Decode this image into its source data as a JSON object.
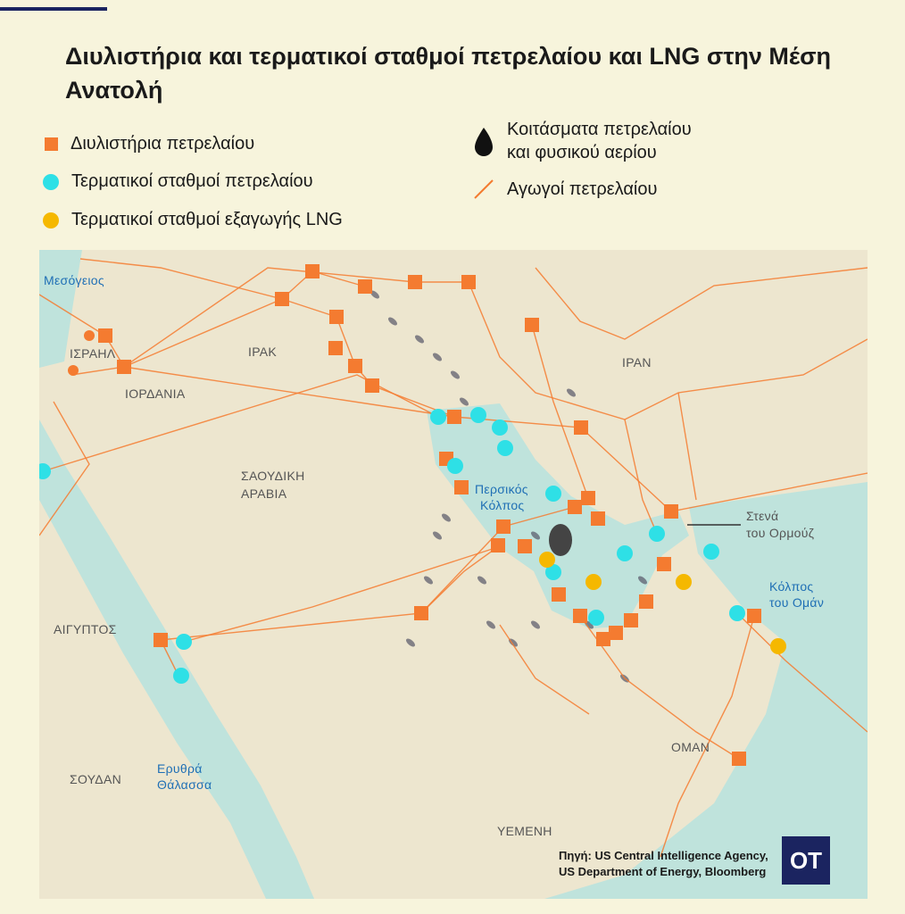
{
  "title": "Διυλιστήρια και τερματικοί σταθμοί πετρελαίου και LNG στην Μέση Ανατολή",
  "legend": {
    "refineries": "Διυλιστήρια πετρελαίου",
    "oil_terminals": "Τερματικοί σταθμοί πετρελαίου",
    "lng_terminals": "Τερματικοί σταθμοί εξαγωγής LNG",
    "deposits_line1": "Κοιτάσματα πετρελαίου",
    "deposits_line2": "και φυσικού αερίου",
    "pipelines": "Αγωγοί πετρελαίου"
  },
  "colors": {
    "refinery": "#f47b30",
    "oil_terminal": "#2ee0e6",
    "lng_terminal": "#f5b800",
    "pipeline": "#f47b30",
    "sea": "#bfe3dc",
    "land": "#ede6cf",
    "brand": "#1b2460"
  },
  "labels": {
    "med": "Μεσόγειος",
    "israel": "ΙΣΡΑΗΛ",
    "jordan": "ΙΟΡΔΑΝΙΑ",
    "iraq": "ΙΡΑΚ",
    "iran": "ΙΡΑΝ",
    "saudi1": "ΣΑΟΥΔΙΚΗ",
    "saudi2": "ΑΡΑΒΙΑ",
    "gulf1": "Περσικός",
    "gulf2": "Κόλπος",
    "hormuz1": "Στενά",
    "hormuz2": "του Ορμούζ",
    "oman_gulf1": "Κόλπος",
    "oman_gulf2": "του Ομάν",
    "egypt": "ΑΙΓΥΠΤΟΣ",
    "oman": "ΟΜΑΝ",
    "red1": "Ερυθρά",
    "red2": "Θάλασσα",
    "sudan": "ΣΟΥΔΑΝ",
    "yemen": "ΥΕΜΕΝΗ"
  },
  "source_line1": "Πηγή: US Central Intelligence Agency,",
  "source_line2": "US Department of Energy, Bloomberg",
  "logo": "OT"
}
